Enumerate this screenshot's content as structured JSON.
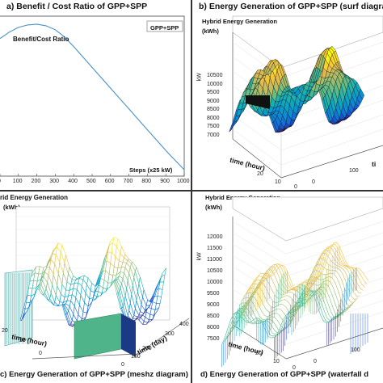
{
  "panels": {
    "a": {
      "title": "a) Benefit / Cost Ratio of GPP+SPP",
      "legend": "GPP+SPP",
      "series_label": "Benefit/Cost Ratio",
      "xlabel": "Steps (x25 kW)",
      "xticks": [
        "0",
        "100",
        "200",
        "300",
        "400",
        "500",
        "600",
        "700",
        "800",
        "900",
        "1000"
      ]
    },
    "b": {
      "title": "b) Energy Generation of  GPP+SPP  (surf diagram",
      "ztitle_line1": "Hybrid Energy Generation",
      "ztitle_line2": "(kWh)",
      "zunit": "kW",
      "zticks": [
        "10500",
        "10000",
        "9500",
        "9000",
        "8500",
        "8000",
        "7500",
        "7000"
      ],
      "ylabel": "time (hour)",
      "yticks": [
        "20",
        "10",
        "0"
      ],
      "right_label": "ti",
      "right_ticks": [
        "0",
        "100"
      ]
    },
    "c": {
      "title": "c) Energy Generation of  GPP+SPP  (meshz diagram)",
      "ztitle_line1": "rid Energy Generation",
      "ztitle_line2": "(kWh)",
      "ylabel": "time (hour)",
      "yticks": [
        "20",
        "10",
        "0"
      ],
      "xlabel": "time (day)",
      "xticks": [
        "0",
        "100",
        "200",
        "300",
        "400"
      ]
    },
    "d": {
      "title": "d) Energy Generation of  GPP+SPP  (waterfall d",
      "ztitle_line1": "Hybrid Energy Generation",
      "ztitle_line2": "(kWh)",
      "zunit": "kW",
      "zticks": [
        "12000",
        "11500",
        "11000",
        "10500",
        "10000",
        "9500",
        "9000",
        "8500",
        "8000",
        "7500"
      ],
      "ylabel": "time (hour)",
      "yticks": [
        "20",
        "10",
        "0"
      ],
      "right_ticks": [
        "0",
        "100"
      ]
    }
  },
  "chart_data": [
    {
      "type": "line",
      "title": "a) Benefit / Cost Ratio of GPP+SPP",
      "xlabel": "Steps (x25 kW)",
      "ylabel": "",
      "series": [
        {
          "name": "Benefit/Cost Ratio",
          "x": [
            0,
            50,
            100,
            150,
            200,
            250,
            300,
            350,
            400,
            450,
            500,
            550,
            600,
            650,
            700,
            750,
            800,
            850,
            900,
            950,
            1000
          ],
          "y": [
            0.86,
            0.9,
            0.93,
            0.945,
            0.95,
            0.94,
            0.915,
            0.87,
            0.81,
            0.745,
            0.68,
            0.615,
            0.55,
            0.485,
            0.42,
            0.355,
            0.29,
            0.225,
            0.16,
            0.1,
            0.04
          ]
        }
      ],
      "xlim": [
        0,
        1000
      ],
      "ylim": [
        0,
        1
      ],
      "grid": false,
      "legend": "top-right",
      "colors": {
        "line": "#4a90c8"
      }
    },
    {
      "type": "surface",
      "title": "b) Energy Generation of  GPP+SPP  (surf diagram",
      "zlabel": "kW",
      "zlim": [
        7000,
        10500
      ],
      "ylabel": "time (hour)",
      "colormap": "parula"
    },
    {
      "type": "surface",
      "title": "c) Energy Generation of  GPP+SPP  (meshz diagram)",
      "ylabel": "time (hour)",
      "xlabel": "time (day)",
      "xlim": [
        0,
        400
      ],
      "colormap": "parula"
    },
    {
      "type": "surface",
      "title": "d) Energy Generation of  GPP+SPP  (waterfall d",
      "zlabel": "kW",
      "zlim": [
        7500,
        12000
      ],
      "ylabel": "time (hour)",
      "colormap": "parula"
    }
  ]
}
